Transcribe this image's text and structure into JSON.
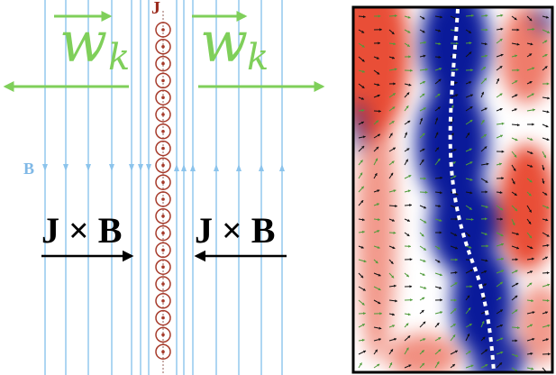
{
  "labels": {
    "current_label": "J",
    "field_label": "B",
    "wave_symbol": "w",
    "wave_subscript": "k",
    "force_left": "J × B",
    "force_right": "J × B"
  },
  "colors": {
    "field_lines": "#8cc4ec",
    "current_sheet": "#a63a2a",
    "wave_arrows": "#7fcf5a",
    "force_arrows": "#000000",
    "map_positive": "#e8452c",
    "map_negative": "#0a1a9a",
    "vector_green": "#4f9a3a",
    "vector_black": "#111111",
    "neutral_line": "#ffffff"
  },
  "icons": {
    "current_marker": "circle-dot-icon",
    "wave_direction": "arrow-icon",
    "force_direction": "arrow-icon"
  }
}
